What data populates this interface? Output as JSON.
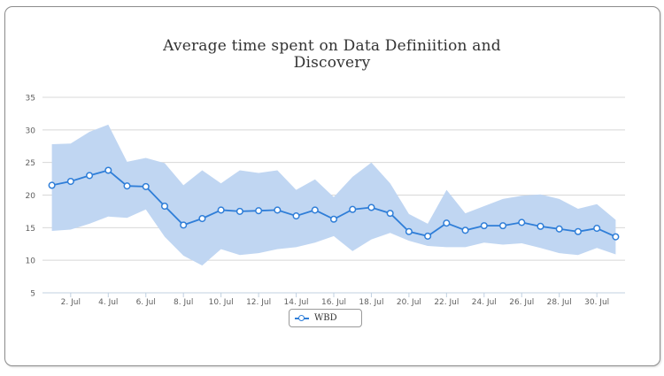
{
  "chart_data": {
    "type": "line",
    "title_lines": [
      "Average time spent on Data Definiition and",
      "Discovery"
    ],
    "xlabel": "",
    "ylabel": "",
    "ylim": [
      5,
      35
    ],
    "yticks": [
      5,
      10,
      15,
      20,
      25,
      30,
      35
    ],
    "x": [
      "1. Jul",
      "2. Jul",
      "3. Jul",
      "4. Jul",
      "5. Jul",
      "6. Jul",
      "7. Jul",
      "8. Jul",
      "9. Jul",
      "10. Jul",
      "11. Jul",
      "12. Jul",
      "13. Jul",
      "14. Jul",
      "15. Jul",
      "16. Jul",
      "17. Jul",
      "18. Jul",
      "19. Jul",
      "20. Jul",
      "21. Jul",
      "22. Jul",
      "23. Jul",
      "24. Jul",
      "25. Jul",
      "26. Jul",
      "27. Jul",
      "28. Jul",
      "29. Jul",
      "30. Jul",
      "31. Jul"
    ],
    "xtick_labels": [
      "2. Jul",
      "4. Jul",
      "6. Jul",
      "8. Jul",
      "10. Jul",
      "12. Jul",
      "14. Jul",
      "16. Jul",
      "18. Jul",
      "20. Jul",
      "22. Jul",
      "24. Jul",
      "26. Jul",
      "28. Jul",
      "30. Jul"
    ],
    "grid": true,
    "legend_position": "bottom-center",
    "series": [
      {
        "name": "WBD",
        "type": "line",
        "color": "#2f7ed8",
        "values": [
          21.5,
          22.1,
          23.0,
          23.8,
          21.4,
          21.3,
          18.3,
          15.4,
          16.4,
          17.7,
          17.5,
          17.6,
          17.7,
          16.8,
          17.7,
          16.3,
          17.8,
          18.1,
          17.2,
          14.4,
          13.7,
          15.7,
          14.6,
          15.3,
          15.3,
          15.8,
          15.2,
          14.8,
          14.4,
          14.9,
          13.6
        ]
      },
      {
        "name": "range",
        "type": "arearange",
        "color": "#c0d6f2",
        "low": [
          14.5,
          14.7,
          15.6,
          16.7,
          16.5,
          17.8,
          13.6,
          10.7,
          9.2,
          11.7,
          10.8,
          11.1,
          11.7,
          12.0,
          12.7,
          13.7,
          11.4,
          13.2,
          14.2,
          13.0,
          12.2,
          12.0,
          12.0,
          12.7,
          12.4,
          12.6,
          11.9,
          11.1,
          10.8,
          11.9,
          10.9
        ],
        "high": [
          27.8,
          27.9,
          29.7,
          30.8,
          25.1,
          25.7,
          24.9,
          21.5,
          23.8,
          21.8,
          23.8,
          23.4,
          23.8,
          20.8,
          22.4,
          19.7,
          22.8,
          25.0,
          21.8,
          17.1,
          15.6,
          20.8,
          17.2,
          18.3,
          19.4,
          19.9,
          20.1,
          19.4,
          17.9,
          18.6,
          16.2
        ]
      }
    ]
  }
}
